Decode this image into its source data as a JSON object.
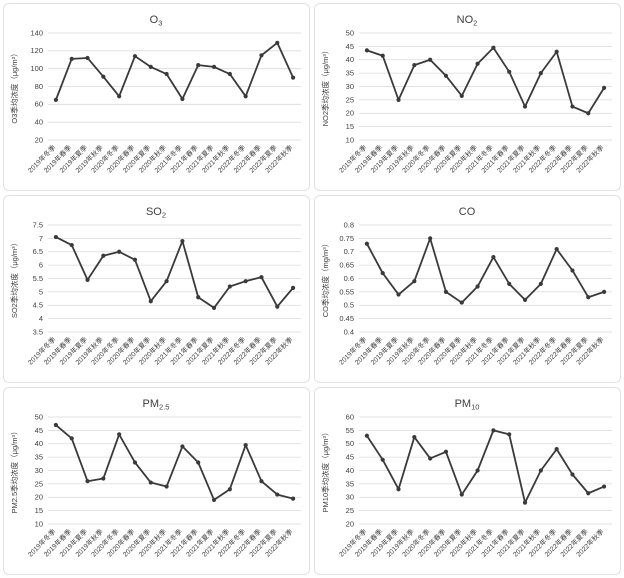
{
  "colors": {
    "line": "#3a3a3a",
    "marker": "#3a3a3a",
    "grid": "#d9d9d9",
    "text": "#404040",
    "title": "#3f3f3f",
    "panel_border": "#e2e2e2",
    "panel_bg": "#ffffff"
  },
  "chart_data": [
    {
      "id": "o3",
      "type": "line",
      "title": "O3",
      "title_main": "O",
      "title_sub": "3",
      "ylabel": "O3季均浓度（μg/m³）",
      "xlabel": "",
      "ylim": [
        20,
        140
      ],
      "ytick_step": 20,
      "grid": true,
      "legend": "none",
      "categories": [
        "2019年冬季",
        "2019年春季",
        "2019年夏季",
        "2019年秋季",
        "2020年冬季",
        "2020年春季",
        "2020年夏季",
        "2020年秋季",
        "2021年冬季",
        "2021年春季",
        "2021年夏季",
        "2021年秋季",
        "2022年冬季",
        "2022年春季",
        "2022年夏季",
        "2022年秋季"
      ],
      "values": [
        65,
        111,
        112,
        91,
        69,
        114,
        102,
        94,
        66,
        104,
        102,
        94,
        69,
        115,
        129,
        90
      ]
    },
    {
      "id": "no2",
      "type": "line",
      "title": "NO2",
      "title_main": "NO",
      "title_sub": "2",
      "ylabel": "NO2季均浓度（μg/m³）",
      "xlabel": "",
      "ylim": [
        10,
        50
      ],
      "ytick_step": 5,
      "grid": true,
      "legend": "none",
      "categories": [
        "2019年冬季",
        "2019年春季",
        "2019年夏季",
        "2019年秋季",
        "2020年冬季",
        "2020年春季",
        "2020年夏季",
        "2020年秋季",
        "2021年冬季",
        "2021年春季",
        "2021年夏季",
        "2021年秋季",
        "2022年冬季",
        "2022年春季",
        "2022年夏季",
        "2022年秋季"
      ],
      "values": [
        43.5,
        41.5,
        25,
        38,
        40,
        34,
        26.5,
        38.5,
        44.5,
        35.5,
        22.5,
        35,
        43,
        22.5,
        20,
        29.5
      ]
    },
    {
      "id": "so2",
      "type": "line",
      "title": "SO2",
      "title_main": "SO",
      "title_sub": "2",
      "ylabel": "SO2季均浓度（μg/m³）",
      "xlabel": "",
      "ylim": [
        3.5,
        7.5
      ],
      "ytick_step": 0.5,
      "grid": true,
      "legend": "none",
      "categories": [
        "2019年冬季",
        "2019年春季",
        "2019年夏季",
        "2019年秋季",
        "2020年冬季",
        "2020年春季",
        "2020年夏季",
        "2020年秋季",
        "2021年冬季",
        "2021年春季",
        "2021年夏季",
        "2021年秋季",
        "2022年冬季",
        "2022年春季",
        "2022年夏季",
        "2022年秋季"
      ],
      "values": [
        7.05,
        6.75,
        5.45,
        6.35,
        6.5,
        6.2,
        4.65,
        5.4,
        6.9,
        4.8,
        4.4,
        5.2,
        5.4,
        5.55,
        4.45,
        5.15
      ]
    },
    {
      "id": "co",
      "type": "line",
      "title": "CO",
      "title_main": "CO",
      "title_sub": "",
      "ylabel": "CO季均浓度（mg/m³）",
      "xlabel": "",
      "ylim": [
        0.4,
        0.8
      ],
      "ytick_step": 0.05,
      "grid": true,
      "legend": "none",
      "categories": [
        "2019年冬季",
        "2019年春季",
        "2019年夏季",
        "2019年秋季",
        "2020年冬季",
        "2020年春季",
        "2020年夏季",
        "2020年秋季",
        "2021年冬季",
        "2021年春季",
        "2021年夏季",
        "2021年秋季",
        "2022年冬季",
        "2022年春季",
        "2022年夏季",
        "2022年秋季"
      ],
      "values": [
        0.73,
        0.62,
        0.54,
        0.59,
        0.75,
        0.55,
        0.51,
        0.57,
        0.68,
        0.58,
        0.52,
        0.58,
        0.71,
        0.63,
        0.53,
        0.55
      ]
    },
    {
      "id": "pm25",
      "type": "line",
      "title": "PM2.5",
      "title_main": "PM",
      "title_sub": "2.5",
      "ylabel": "PM2.5季均浓度（μg/m³）",
      "xlabel": "",
      "ylim": [
        10,
        50
      ],
      "ytick_step": 5,
      "grid": true,
      "legend": "none",
      "categories": [
        "2019年冬季",
        "2019年春季",
        "2019年夏季",
        "2019年秋季",
        "2020年冬季",
        "2020年春季",
        "2020年夏季",
        "2020年秋季",
        "2021年冬季",
        "2021年春季",
        "2021年夏季",
        "2021年秋季",
        "2022年冬季",
        "2022年春季",
        "2022年夏季",
        "2022年秋季"
      ],
      "values": [
        47,
        42,
        26,
        27,
        43.5,
        33,
        25.5,
        24,
        39,
        33,
        19,
        23,
        39.5,
        26,
        21,
        19.5
      ]
    },
    {
      "id": "pm10",
      "type": "line",
      "title": "PM10",
      "title_main": "PM",
      "title_sub": "10",
      "ylabel": "PM10季均浓度（μg/m³）",
      "xlabel": "",
      "ylim": [
        20,
        60
      ],
      "ytick_step": 5,
      "grid": true,
      "legend": "none",
      "categories": [
        "2019年冬季",
        "2019年春季",
        "2019年夏季",
        "2019年秋季",
        "2020年冬季",
        "2020年春季",
        "2020年夏季",
        "2020年秋季",
        "2021年冬季",
        "2021年春季",
        "2021年夏季",
        "2021年秋季",
        "2022年冬季",
        "2022年春季",
        "2022年夏季",
        "2022年秋季"
      ],
      "values": [
        53,
        44,
        33,
        52.5,
        44.5,
        47,
        31,
        40,
        55,
        53.5,
        28,
        40,
        48,
        38.5,
        31.5,
        34
      ]
    }
  ]
}
